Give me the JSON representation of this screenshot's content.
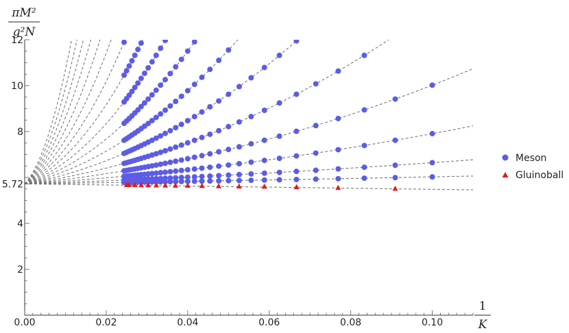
{
  "chart_data": {
    "type": "scatter",
    "xlabel": {
      "numerator": "1",
      "denominator": "K"
    },
    "ylabel": {
      "numerator": "πM²",
      "denominator": "g²N"
    },
    "xlim": [
      0,
      0.11
    ],
    "ylim": [
      0,
      12
    ],
    "x_ticks": [
      "0.00",
      "0.02",
      "0.04",
      "0.06",
      "0.08",
      "0.10"
    ],
    "x_tick_values": [
      0,
      0.02,
      0.04,
      0.06,
      0.08,
      0.1
    ],
    "y_ticks": [
      "2",
      "4",
      "5.72",
      "8",
      "10",
      "12"
    ],
    "y_tick_values": [
      2,
      4,
      5.72,
      8,
      10,
      12
    ],
    "intercept": 5.72,
    "legend_position": "right",
    "series": [
      {
        "name": "Meson",
        "marker": "circle",
        "color": "#5c5ce6",
        "K_values": [
          10,
          11,
          12,
          13,
          14,
          15,
          16,
          17,
          18,
          19,
          20,
          21,
          22,
          23,
          24,
          25,
          26,
          27,
          28,
          29,
          30,
          31,
          32,
          33,
          34,
          35,
          36,
          37,
          38,
          39,
          40,
          41
        ],
        "slopes": [
          2.5,
          6.0,
          11.0,
          17.0,
          24.0,
          32.0,
          41.0,
          51.0,
          62.0,
          74.0,
          87.0,
          101.0,
          116.0,
          132.0,
          149.0,
          167.0,
          186.0
        ]
      },
      {
        "name": "Gluinoball",
        "marker": "triangle",
        "color": "#e01b1b",
        "x": [
          0.0909,
          0.0769,
          0.0667,
          0.0588,
          0.0526,
          0.0476,
          0.0435,
          0.04,
          0.037,
          0.0345,
          0.0323,
          0.0303,
          0.0286,
          0.027,
          0.0256,
          0.025
        ],
        "y": [
          5.51,
          5.55,
          5.58,
          5.6,
          5.61,
          5.62,
          5.63,
          5.64,
          5.645,
          5.65,
          5.655,
          5.66,
          5.665,
          5.67,
          5.672,
          5.674
        ]
      }
    ]
  }
}
